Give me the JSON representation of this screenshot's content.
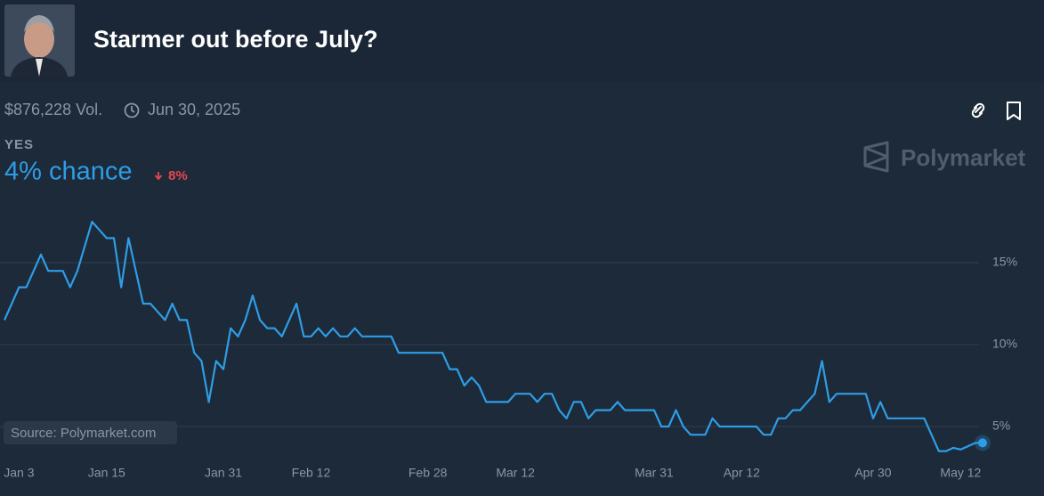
{
  "header": {
    "title": "Starmer out before July?",
    "volume": "$876,228 Vol.",
    "end_date": "Jun 30, 2025",
    "outcome": "YES",
    "chance": "4% chance",
    "change": "8%",
    "brand": "Polymarket",
    "source": "Source: Polymarket.com"
  },
  "chart_data": {
    "type": "line",
    "color": "#2e9de6",
    "grid": true,
    "x": [
      "Jan 1",
      "Jan 2",
      "Jan 3",
      "Jan 4",
      "Jan 5",
      "Jan 6",
      "Jan 7",
      "Jan 8",
      "Jan 9",
      "Jan 10",
      "Jan 11",
      "Jan 12",
      "Jan 13",
      "Jan 14",
      "Jan 15",
      "Jan 16",
      "Jan 17",
      "Jan 18",
      "Jan 19",
      "Jan 20",
      "Jan 21",
      "Jan 22",
      "Jan 23",
      "Jan 24",
      "Jan 25",
      "Jan 26",
      "Jan 27",
      "Jan 28",
      "Jan 29",
      "Jan 30",
      "Jan 31",
      "Feb 1",
      "Feb 2",
      "Feb 3",
      "Feb 4",
      "Feb 5",
      "Feb 6",
      "Feb 7",
      "Feb 8",
      "Feb 9",
      "Feb 10",
      "Feb 11",
      "Feb 12",
      "Feb 13",
      "Feb 14",
      "Feb 15",
      "Feb 16",
      "Feb 17",
      "Feb 18",
      "Feb 19",
      "Feb 20",
      "Feb 21",
      "Feb 22",
      "Feb 23",
      "Feb 24",
      "Feb 25",
      "Feb 26",
      "Feb 27",
      "Feb 28",
      "Mar 1",
      "Mar 2",
      "Mar 3",
      "Mar 4",
      "Mar 5",
      "Mar 6",
      "Mar 7",
      "Mar 8",
      "Mar 9",
      "Mar 10",
      "Mar 11",
      "Mar 12",
      "Mar 13",
      "Mar 14",
      "Mar 15",
      "Mar 16",
      "Mar 17",
      "Mar 18",
      "Mar 19",
      "Mar 20",
      "Mar 21",
      "Mar 22",
      "Mar 23",
      "Mar 24",
      "Mar 25",
      "Mar 26",
      "Mar 27",
      "Mar 28",
      "Mar 29",
      "Mar 30",
      "Mar 31",
      "Apr 1",
      "Apr 2",
      "Apr 3",
      "Apr 4",
      "Apr 5",
      "Apr 6",
      "Apr 7",
      "Apr 8",
      "Apr 9",
      "Apr 10",
      "Apr 11",
      "Apr 12",
      "Apr 13",
      "Apr 14",
      "Apr 15",
      "Apr 16",
      "Apr 17",
      "Apr 18",
      "Apr 19",
      "Apr 20",
      "Apr 21",
      "Apr 22",
      "Apr 23",
      "Apr 24",
      "Apr 25",
      "Apr 26",
      "Apr 27",
      "Apr 28",
      "Apr 29",
      "Apr 30",
      "May 1",
      "May 2",
      "May 3",
      "May 4",
      "May 5",
      "May 6",
      "May 7",
      "May 8",
      "May 9",
      "May 10",
      "May 11",
      "May 12",
      "May 13",
      "May 14",
      "May 15"
    ],
    "values": [
      11.5,
      12.5,
      13.5,
      13.5,
      14.5,
      15.5,
      14.5,
      14.5,
      14.5,
      13.5,
      14.5,
      16,
      17.5,
      17,
      16.5,
      16.5,
      13.5,
      16.5,
      14.5,
      12.5,
      12.5,
      12,
      11.5,
      12.5,
      11.5,
      11.5,
      9.5,
      9,
      6.5,
      9,
      8.5,
      11,
      10.5,
      11.5,
      13,
      11.5,
      11,
      11,
      10.5,
      11.5,
      12.5,
      10.5,
      10.5,
      11,
      10.5,
      11,
      10.5,
      10.5,
      11,
      10.5,
      10.5,
      10.5,
      10.5,
      10.5,
      9.5,
      9.5,
      9.5,
      9.5,
      9.5,
      9.5,
      9.5,
      8.5,
      8.5,
      7.5,
      8,
      7.5,
      6.5,
      6.5,
      6.5,
      6.5,
      7,
      7,
      7,
      6.5,
      7,
      7,
      6,
      5.5,
      6.5,
      6.5,
      5.5,
      6,
      6,
      6,
      6.5,
      6,
      6,
      6,
      6,
      6,
      5,
      5,
      6,
      5,
      4.5,
      4.5,
      4.5,
      5.5,
      5,
      5,
      5,
      5,
      5,
      5,
      4.5,
      4.5,
      5.5,
      5.5,
      6,
      6,
      6.5,
      7,
      9,
      6.5,
      7,
      7,
      7,
      7,
      7,
      5.5,
      6.5,
      5.5,
      5.5,
      5.5,
      5.5,
      5.5,
      5.5,
      4.5,
      3.5,
      3.5,
      3.7,
      3.6,
      3.8,
      4,
      4
    ],
    "xticks": [
      "Jan 3",
      "Jan 15",
      "Jan 31",
      "Feb 12",
      "Feb 28",
      "Mar 12",
      "Mar 31",
      "Apr 12",
      "Apr 30",
      "May 12"
    ],
    "ylim": [
      3,
      19
    ],
    "yticks": [
      {
        "value": 5,
        "label": "5%"
      },
      {
        "value": 10,
        "label": "10%"
      },
      {
        "value": 15,
        "label": "15%"
      }
    ]
  }
}
